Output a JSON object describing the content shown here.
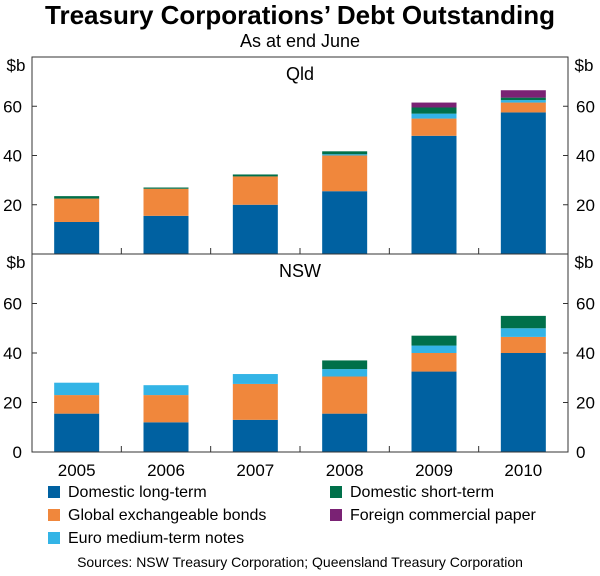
{
  "title": "Treasury Corporations’ Debt Outstanding",
  "subtitle": "As at end June",
  "source": "Sources: NSW Treasury Corporation; Queensland Treasury Corporation",
  "colors": {
    "domestic_long_term": "#0061a1",
    "global_exchangeable_bonds": "#f0873c",
    "euro_medium_term_notes": "#33b4e6",
    "domestic_short_term": "#00704a",
    "foreign_commercial_paper": "#7a2274"
  },
  "legend": [
    {
      "key": "domestic_long_term",
      "label": "Domestic long-term"
    },
    {
      "key": "domestic_short_term",
      "label": "Domestic short-term"
    },
    {
      "key": "global_exchangeable_bonds",
      "label": "Global exchangeable bonds"
    },
    {
      "key": "foreign_commercial_paper",
      "label": "Foreign commercial paper"
    },
    {
      "key": "euro_medium_term_notes",
      "label": "Euro medium-term notes"
    }
  ],
  "chart_data": [
    {
      "type": "bar",
      "stacked": true,
      "title": "Qld",
      "unit_label": "$b",
      "categories": [
        "2005",
        "2006",
        "2007",
        "2008",
        "2009",
        "2010"
      ],
      "ylim": [
        0,
        80
      ],
      "yticks": [
        20,
        40,
        60
      ],
      "series": [
        {
          "key": "domestic_long_term",
          "name": "Domestic long-term",
          "values": [
            13,
            15.5,
            20,
            25.5,
            48,
            57.5
          ]
        },
        {
          "key": "global_exchangeable_bonds",
          "name": "Global exchangeable bonds",
          "values": [
            9.5,
            11,
            11.5,
            14.5,
            7,
            4
          ]
        },
        {
          "key": "euro_medium_term_notes",
          "name": "Euro medium-term notes",
          "values": [
            0,
            0,
            0,
            0.5,
            2,
            1
          ]
        },
        {
          "key": "domestic_short_term",
          "name": "Domestic short-term",
          "values": [
            1,
            0.5,
            0.8,
            1.2,
            2.5,
            1
          ]
        },
        {
          "key": "foreign_commercial_paper",
          "name": "Foreign commercial paper",
          "values": [
            0,
            0,
            0,
            0,
            2,
            3
          ]
        }
      ]
    },
    {
      "type": "bar",
      "stacked": true,
      "title": "NSW",
      "unit_label": "$b",
      "categories": [
        "2005",
        "2006",
        "2007",
        "2008",
        "2009",
        "2010"
      ],
      "ylim": [
        0,
        80
      ],
      "yticks": [
        0,
        20,
        40,
        60
      ],
      "series": [
        {
          "key": "domestic_long_term",
          "name": "Domestic long-term",
          "values": [
            15.5,
            12,
            13,
            15.5,
            32.5,
            40
          ]
        },
        {
          "key": "global_exchangeable_bonds",
          "name": "Global exchangeable bonds",
          "values": [
            7.5,
            11,
            14.5,
            15,
            7.5,
            6.5
          ]
        },
        {
          "key": "euro_medium_term_notes",
          "name": "Euro medium-term notes",
          "values": [
            5,
            4,
            4,
            3,
            3,
            3.5
          ]
        },
        {
          "key": "domestic_short_term",
          "name": "Domestic short-term",
          "values": [
            0,
            0,
            0,
            3.5,
            4,
            5
          ]
        },
        {
          "key": "foreign_commercial_paper",
          "name": "Foreign commercial paper",
          "values": [
            0,
            0,
            0,
            0,
            0,
            0
          ]
        }
      ]
    }
  ]
}
